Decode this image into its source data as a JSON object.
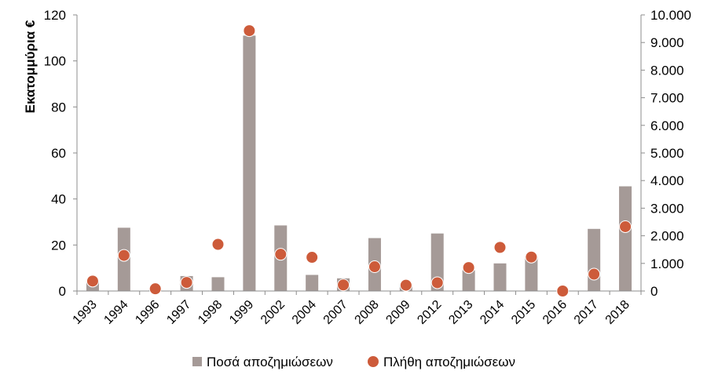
{
  "colors": {
    "bar": "#a59a97",
    "point": "#cd5b3a",
    "axis": "#8c8c8c",
    "point_edge": "#ffffff"
  },
  "chart_data": {
    "type": "bar",
    "title": "",
    "categories": [
      "1993",
      "1994",
      "1996",
      "1997",
      "1998",
      "1999",
      "2002",
      "2004",
      "2007",
      "2008",
      "2009",
      "2012",
      "2013",
      "2014",
      "2015",
      "2016",
      "2017",
      "2018"
    ],
    "ylabel": "Εκατομμύρια €",
    "ylim": [
      0,
      120
    ],
    "yticks": [
      0,
      20,
      40,
      60,
      80,
      100,
      120
    ],
    "y2lim": [
      0,
      10000
    ],
    "y2ticks": [
      "0",
      "1.000",
      "2.000",
      "3.000",
      "4.000",
      "5.000",
      "6.000",
      "7.000",
      "8.000",
      "9.000",
      "10.000"
    ],
    "grid": false,
    "legend": "bottom",
    "series": [
      {
        "name": "Ποσά αποζημιώσεων",
        "type": "bar",
        "axis": "left",
        "values": [
          4.5,
          27.5,
          0.5,
          6.5,
          6,
          111,
          28.5,
          7,
          5.5,
          23,
          3,
          25,
          9,
          12,
          15,
          0,
          27,
          45.5
        ]
      },
      {
        "name": "Πλήθη αποζημιώσεων",
        "type": "scatter",
        "axis": "right",
        "values": [
          360,
          1290,
          80,
          310,
          1690,
          9430,
          1330,
          1220,
          220,
          880,
          210,
          300,
          850,
          1580,
          1230,
          0,
          610,
          2330
        ]
      }
    ]
  }
}
